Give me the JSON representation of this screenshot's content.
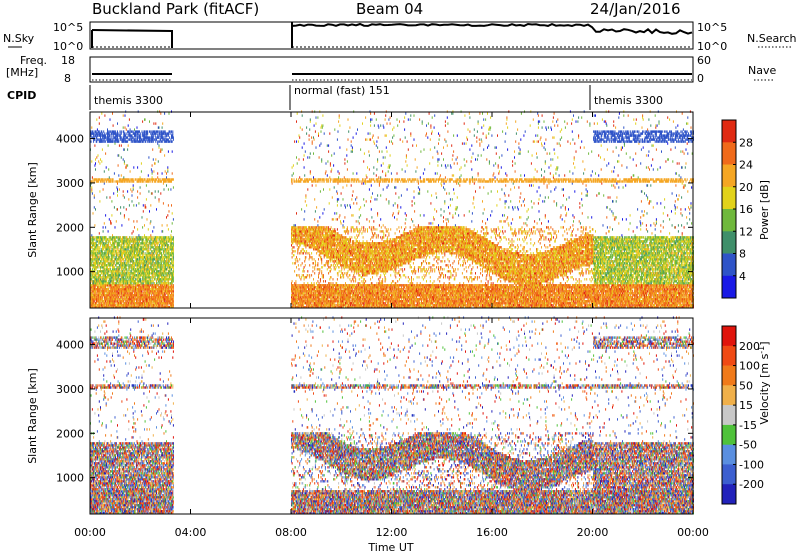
{
  "header": {
    "site": "Buckland Park (fitACF)",
    "beam": "Beam 04",
    "date": "24/Jan/2016"
  },
  "summary_panels": {
    "nsky_label": "N.Sky",
    "nsky_ticks": [
      "10^5",
      "10^0"
    ],
    "nsearch_label": "N.Search",
    "nsearch_ticks": [
      "10^5",
      "10^0"
    ],
    "freq_label_1": "Freq.",
    "freq_label_2": "[MHz]",
    "freq_ticks": [
      "18",
      "8"
    ],
    "nave_label": "Nave",
    "nave_ticks": [
      "60",
      "0"
    ],
    "cpid_label": "CPID",
    "cpid_segments": [
      {
        "label": "themis 3300",
        "start_hour": 0,
        "end_hour": 3.3
      },
      {
        "label": "normal (fast) 151",
        "start_hour": 8,
        "end_hour": 20
      },
      {
        "label": "themis 3300",
        "start_hour": 20,
        "end_hour": 24
      }
    ]
  },
  "chart_data": [
    {
      "type": "heatmap",
      "parameter": "power",
      "ylabel": "Slant Range [km]",
      "ylim": [
        180,
        4600
      ],
      "yticks": [
        1000,
        2000,
        3000,
        4000
      ],
      "colorbar_label": "Power [dB]",
      "colorbar_ticks": [
        4,
        8,
        12,
        16,
        20,
        24,
        28
      ],
      "colorbar_colors": [
        "#1a1ae6",
        "#2f54c8",
        "#3f8f6a",
        "#6fb83c",
        "#e2d21a",
        "#f5a623",
        "#f06a1a",
        "#e02a12"
      ],
      "data_gaps_hours": [
        [
          3.3,
          8.0
        ]
      ]
    },
    {
      "type": "heatmap",
      "parameter": "velocity",
      "ylabel": "Slant Range [km]",
      "ylim": [
        180,
        4600
      ],
      "yticks": [
        1000,
        2000,
        3000,
        4000
      ],
      "xlabel": "Time UT",
      "xticks": [
        "00:00",
        "04:00",
        "08:00",
        "12:00",
        "16:00",
        "20:00",
        "00:00"
      ],
      "colorbar_label": "Velocity [m s",
      "colorbar_label_sup": "-1",
      "colorbar_label_end": "]",
      "colorbar_ticks": [
        "200",
        "100",
        "50",
        "15",
        "-15",
        "-50",
        "-100",
        "-200"
      ],
      "colorbar_colors": [
        "#2222bb",
        "#3c5fd0",
        "#5a8fe0",
        "#4fc23a",
        "#c8c8c8",
        "#f0b04a",
        "#f07a1a",
        "#f04a14",
        "#e0140c"
      ],
      "data_gaps_hours": [
        [
          3.3,
          8.0
        ]
      ]
    }
  ]
}
